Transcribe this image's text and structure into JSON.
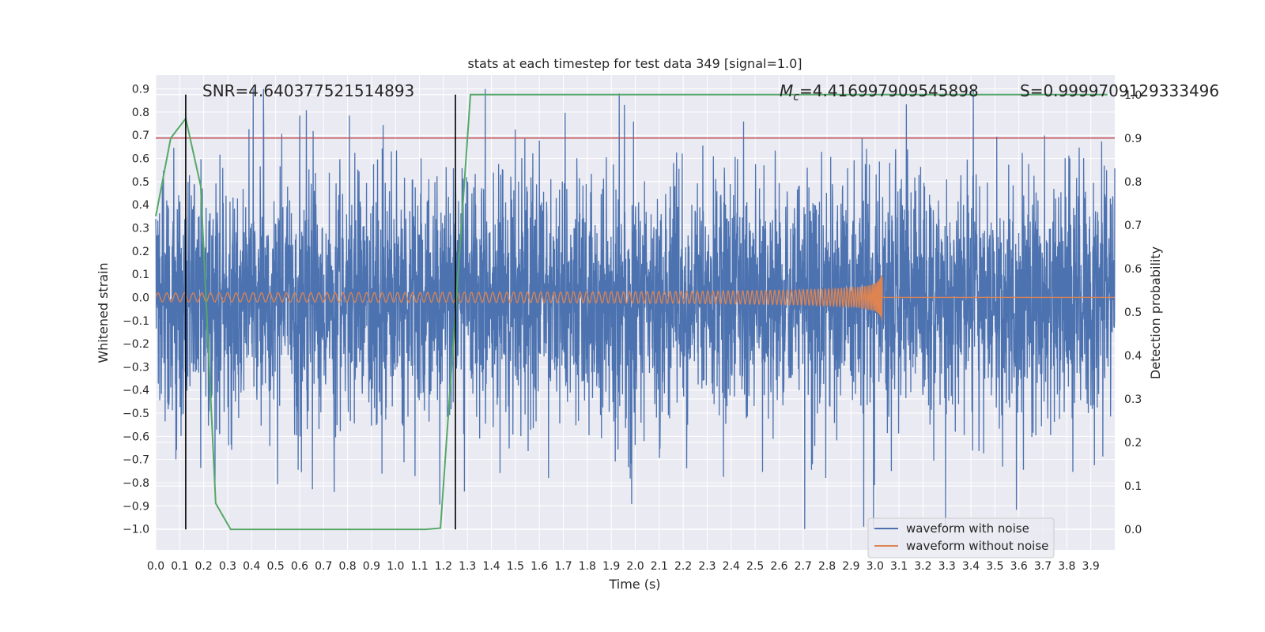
{
  "chart_data": {
    "type": "line",
    "title": "stats at each timestep for test data 349 [signal=1.0]",
    "xlabel": "Time (s)",
    "ylabel": "Whitened strain",
    "y2label": "Detection probability",
    "xlim": [
      0.0,
      4.0
    ],
    "ylim": [
      -1.09,
      0.96
    ],
    "y2lim": [
      -0.047,
      1.045
    ],
    "x_ticks": [
      "0.0",
      "0.1",
      "0.2",
      "0.3",
      "0.4",
      "0.5",
      "0.6",
      "0.7",
      "0.8",
      "0.9",
      "1.0",
      "1.1",
      "1.2",
      "1.3",
      "1.4",
      "1.5",
      "1.6",
      "1.7",
      "1.8",
      "1.9",
      "2.0",
      "2.1",
      "2.2",
      "2.3",
      "2.4",
      "2.5",
      "2.6",
      "2.7",
      "2.8",
      "2.9",
      "3.0",
      "3.1",
      "3.2",
      "3.3",
      "3.4",
      "3.5",
      "3.6",
      "3.7",
      "3.8",
      "3.9"
    ],
    "y_ticks": [
      "0.9",
      "0.8",
      "0.7",
      "0.6",
      "0.5",
      "0.4",
      "0.3",
      "0.2",
      "0.1",
      "0.0",
      "-0.1",
      "-0.2",
      "-0.3",
      "-0.4",
      "-0.5",
      "-0.6",
      "-0.7",
      "-0.8",
      "-0.9",
      "-1.0"
    ],
    "y2_ticks": [
      "1.0",
      "0.9",
      "0.8",
      "0.7",
      "0.6",
      "0.5",
      "0.4",
      "0.3",
      "0.2",
      "0.1",
      "0.0"
    ],
    "grid": true,
    "legend": {
      "position": "lower-right",
      "entries": [
        "waveform with noise",
        "waveform without noise"
      ]
    },
    "annotations": {
      "snr": "SNR=4.640377521514893",
      "mc_symbol": "M",
      "mc_sub": "c",
      "mc_value": "=4.416997909545898",
      "s": "S=0.9999709129333496"
    },
    "threshold_y2": 0.9,
    "vertical_lines_x": [
      0.125,
      1.25
    ],
    "series": [
      {
        "name": "waveform with noise",
        "color": "#4c72b0",
        "axis": "y",
        "kind": "noise",
        "amplitude_typical": 0.35,
        "range": [
          -1.0,
          0.9
        ]
      },
      {
        "name": "waveform without noise",
        "color": "#dd8452",
        "axis": "y",
        "kind": "chirp",
        "merger_time": 3.03,
        "peak_amplitude": 0.12
      },
      {
        "name": "detection probability",
        "color": "#55a868",
        "axis": "y2",
        "x": [
          0.0,
          0.0625,
          0.125,
          0.1875,
          0.25,
          0.3125,
          1.125,
          1.1875,
          1.25,
          1.3125,
          3.97
        ],
        "y": [
          0.72,
          0.9,
          0.945,
          0.79,
          0.06,
          0.0,
          0.0,
          0.003,
          0.5,
          1.0,
          1.0
        ]
      },
      {
        "name": "threshold",
        "color": "#c44e52",
        "axis": "y2"
      }
    ]
  }
}
